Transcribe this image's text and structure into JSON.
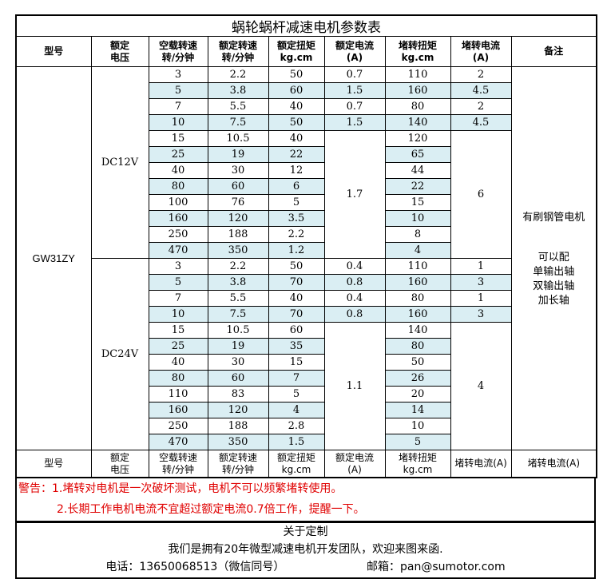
{
  "title": "蜗轮蜗杆减速电机参数表",
  "headers": [
    "型号",
    "额定\n电压",
    "空载转速\n转/分钟",
    "额定转速\n转/分钟",
    "额定扭矩\nkg.cm",
    "额定电流\n(A)",
    "堵转扭矩\nkg.cm",
    "堵转电流\n(A)",
    "备注"
  ],
  "footer_headers": [
    "型号",
    "额定\n电压",
    "空载转速\n转/分钟",
    "额定转速\n转/分钟",
    "额定扭矩\nkg.cm",
    "额定电流\n(A)",
    "堵转扭矩\nkg.cm",
    "堵转电流(A)",
    "堵转电流(A)"
  ],
  "model": "GW31ZY",
  "remarks": {
    "line1": "有刷钢管电机",
    "line2": "可以配\n单输出轴\n双输出轴\n加长轴"
  },
  "shade_color": "#daeef3",
  "groups": [
    {
      "voltage": "DC12V",
      "rows": [
        [
          "3",
          "2.2",
          "50",
          "110"
        ],
        [
          "5",
          "3.8",
          "60",
          "160"
        ],
        [
          "7",
          "5.5",
          "40",
          "80"
        ],
        [
          "10",
          "7.5",
          "50",
          "140"
        ],
        [
          "15",
          "10.5",
          "40",
          "120"
        ],
        [
          "25",
          "19",
          "22",
          "65"
        ],
        [
          "40",
          "30",
          "12",
          "44"
        ],
        [
          "80",
          "60",
          "6",
          "22"
        ],
        [
          "100",
          "76",
          "5",
          "15"
        ],
        [
          "160",
          "120",
          "3.5",
          "10"
        ],
        [
          "250",
          "188",
          "2.2",
          "8"
        ],
        [
          "470",
          "350",
          "1.2",
          "4"
        ]
      ],
      "rated_current": [
        {
          "value": "0.7",
          "span": 1
        },
        {
          "value": "1.5",
          "span": 1
        },
        {
          "value": "0.7",
          "span": 1
        },
        {
          "value": "1.5",
          "span": 1
        },
        {
          "value": "1.7",
          "span": 8
        }
      ],
      "stall_current": [
        {
          "value": "2",
          "span": 1
        },
        {
          "value": "4.5",
          "span": 1
        },
        {
          "value": "2",
          "span": 1
        },
        {
          "value": "4.5",
          "span": 1
        },
        {
          "value": "6",
          "span": 8
        }
      ]
    },
    {
      "voltage": "DC24V",
      "rows": [
        [
          "3",
          "2.2",
          "50",
          "110"
        ],
        [
          "5",
          "3.8",
          "70",
          "160"
        ],
        [
          "7",
          "5.5",
          "40",
          "80"
        ],
        [
          "10",
          "7.5",
          "70",
          "160"
        ],
        [
          "15",
          "10.5",
          "60",
          "140"
        ],
        [
          "25",
          "19",
          "35",
          "80"
        ],
        [
          "40",
          "30",
          "15",
          "50"
        ],
        [
          "80",
          "60",
          "7",
          "26"
        ],
        [
          "110",
          "83",
          "5",
          "20"
        ],
        [
          "160",
          "120",
          "4",
          "14"
        ],
        [
          "250",
          "188",
          "2.8",
          "10"
        ],
        [
          "470",
          "350",
          "1.5",
          "5"
        ]
      ],
      "rated_current": [
        {
          "value": "0.4",
          "span": 1
        },
        {
          "value": "0.8",
          "span": 1
        },
        {
          "value": "0.4",
          "span": 1
        },
        {
          "value": "0.8",
          "span": 1
        },
        {
          "value": "1.1",
          "span": 8
        }
      ],
      "stall_current": [
        {
          "value": "1",
          "span": 1
        },
        {
          "value": "3",
          "span": 1
        },
        {
          "value": "1",
          "span": 1
        },
        {
          "value": "3",
          "span": 1
        },
        {
          "value": "4",
          "span": 8
        }
      ]
    }
  ],
  "warning": {
    "line1": "警告：1.堵转对电机是一次破坏测试，电机不可以频繁堵转使用。",
    "line2": "2.长期工作电机电流不宜超过额定电流0.7倍工作，提醒一下。"
  },
  "custom": {
    "heading": "关于定制",
    "text": "我们是拥有20年微型减速电机开发团队，欢迎来图来函.",
    "phone": "电话：13650068513（微信同号）",
    "email": "邮箱：pan@sumotor.com"
  }
}
